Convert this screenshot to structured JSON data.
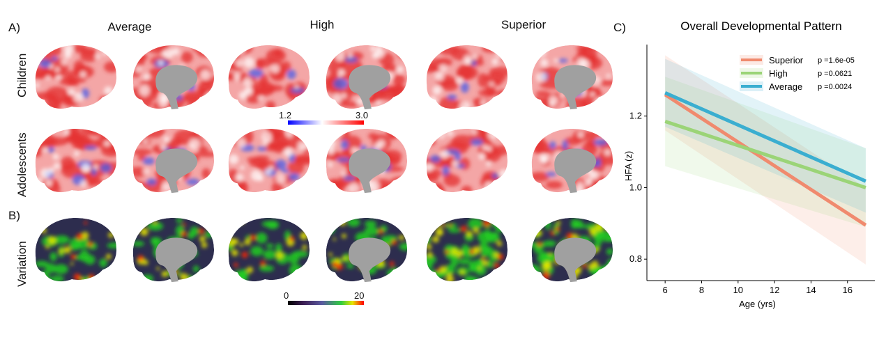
{
  "panels": {
    "a_letter": "A)",
    "b_letter": "B)",
    "c_letter": "C)"
  },
  "columns": [
    "Average",
    "High",
    "Superior"
  ],
  "rows": {
    "children": "Children",
    "adolescents": "Adolescents",
    "variation": "Variation"
  },
  "colorbar_hfa": {
    "min_label": "1.2",
    "max_label": "3.0",
    "colors": [
      "#0000ff",
      "#ffffff",
      "#ff0000"
    ]
  },
  "colorbar_var": {
    "min_label": "0",
    "max_label": "20",
    "colors": [
      "#000000",
      "#3b1d52",
      "#5a5aa0",
      "#2ecc40",
      "#e6e600",
      "#ff0000"
    ]
  },
  "brain_colors": {
    "hfa_red": "#e53333",
    "hfa_pink": "#f4a6a6",
    "hfa_blue": "#4a5ee8",
    "medial_wall": "#a0a0a0",
    "var_dark": "#2d2d4e",
    "var_green": "#22cc22",
    "var_yellow": "#e8e800",
    "var_red": "#ff2a00"
  },
  "chart_data": {
    "type": "line",
    "title": "Overall Developmental Pattern",
    "xlabel": "Age (yrs)",
    "ylabel": "HFA (z)",
    "xlim": [
      5,
      17.5
    ],
    "ylim": [
      0.74,
      1.4
    ],
    "xticks": [
      6,
      8,
      10,
      12,
      14,
      16
    ],
    "yticks": [
      0.8,
      1.0,
      1.2
    ],
    "legend_position": "top-right",
    "series": [
      {
        "name": "Superior",
        "p_label": "p =1.6e-05",
        "color": "#f08a6e",
        "x": [
          6,
          17
        ],
        "y": [
          1.26,
          0.895
        ],
        "ci_lower": [
          1.16,
          0.785
        ],
        "ci_upper": [
          1.37,
          1.0
        ]
      },
      {
        "name": "High",
        "p_label": "p =0.0621",
        "color": "#9bd477",
        "x": [
          6,
          17
        ],
        "y": [
          1.185,
          1.0
        ],
        "ci_lower": [
          1.06,
          0.89
        ],
        "ci_upper": [
          1.31,
          1.11
        ]
      },
      {
        "name": "Average",
        "p_label": "p =0.0024",
        "color": "#3aaed0",
        "x": [
          6,
          17
        ],
        "y": [
          1.265,
          1.018
        ],
        "ci_lower": [
          1.17,
          0.93
        ],
        "ci_upper": [
          1.36,
          1.11
        ]
      }
    ]
  }
}
